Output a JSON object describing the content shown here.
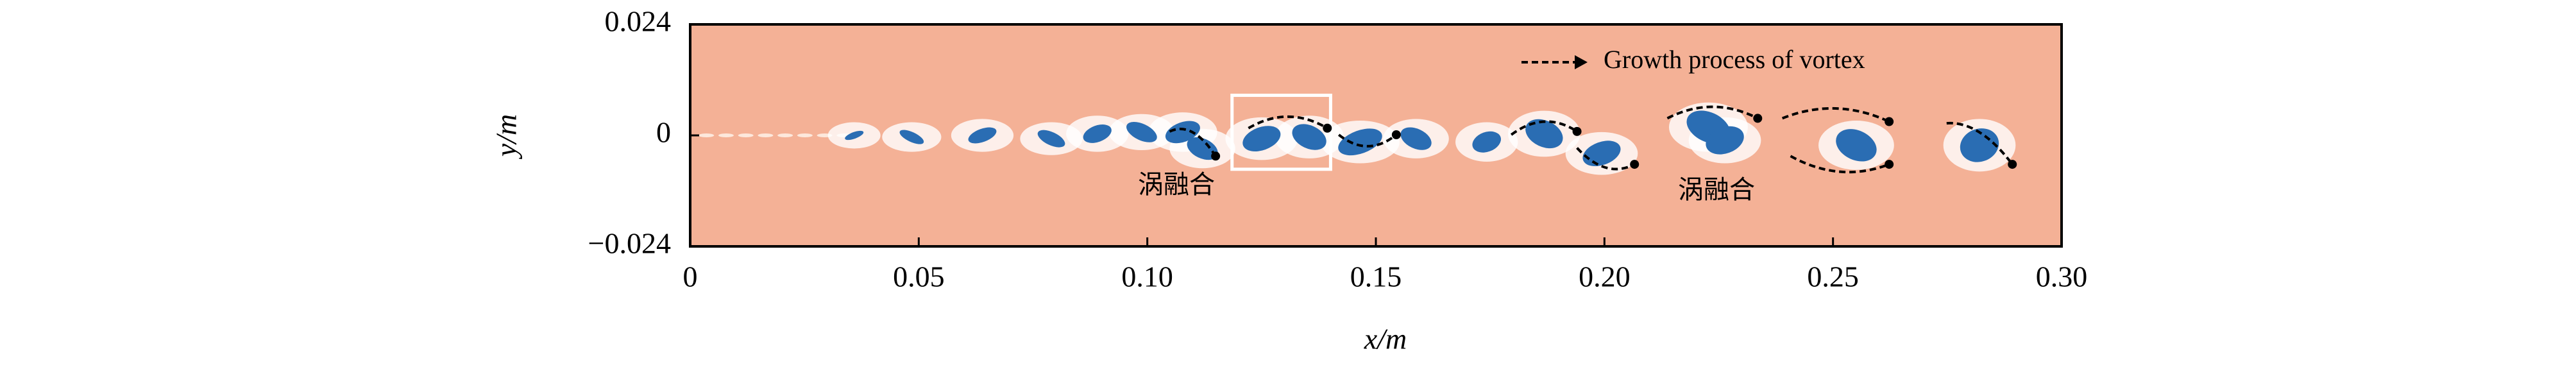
{
  "chart_data": {
    "type": "field",
    "x_label": "x/m",
    "y_label": "y/m",
    "xlim": [
      0,
      0.3
    ],
    "ylim": [
      -0.024,
      0.024
    ],
    "xticks": [
      0,
      0.05,
      {
        "value": 0.1,
        "label": "0.10"
      },
      0.15,
      {
        "value": 0.2,
        "label": "0.20"
      },
      0.25,
      {
        "value": 0.3,
        "label": "0.30"
      }
    ],
    "yticks": [
      {
        "value": -0.024,
        "label": "−0.024"
      },
      0,
      0.024
    ],
    "background_color": "#f4b196",
    "vortex_color": "#2a6db3",
    "legend": "Growth process of vortex",
    "annotations": [
      "涡融合",
      "涡融合"
    ]
  }
}
